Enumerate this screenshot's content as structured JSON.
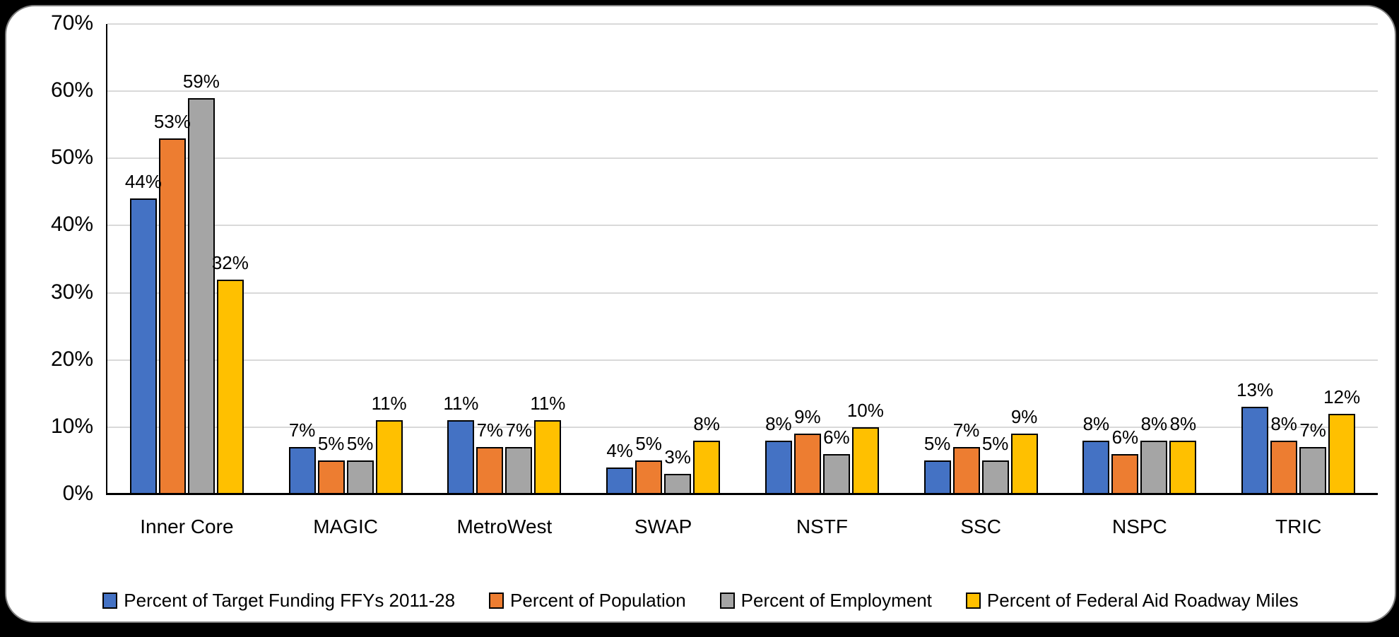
{
  "chart_data": {
    "type": "bar",
    "title": "",
    "categories": [
      "Inner Core",
      "MAGIC",
      "MetroWest",
      "SWAP",
      "NSTF",
      "SSC",
      "NSPC",
      "TRIC"
    ],
    "series": [
      {
        "name": "Percent of Target Funding FFYs 2011-28",
        "color": "#4472C4",
        "values": [
          44,
          7,
          11,
          4,
          8,
          5,
          8,
          13
        ]
      },
      {
        "name": "Percent of Population",
        "color": "#ED7D31",
        "values": [
          53,
          5,
          7,
          5,
          9,
          7,
          6,
          8
        ]
      },
      {
        "name": "Percent of Employment",
        "color": "#A5A5A5",
        "values": [
          59,
          5,
          7,
          3,
          6,
          5,
          8,
          7
        ]
      },
      {
        "name": "Percent of Federal Aid Roadway Miles",
        "color": "#FFC000",
        "values": [
          32,
          11,
          11,
          8,
          10,
          9,
          8,
          12
        ]
      }
    ],
    "data_labels": [
      [
        "44%",
        "7%",
        "11%",
        "4%",
        "8%",
        "5%",
        "8%",
        "13%"
      ],
      [
        "53%",
        "5%",
        "7%",
        "5%",
        "9%",
        "7%",
        "6%",
        "8%"
      ],
      [
        "59%",
        "5%",
        "7%",
        "3%",
        "6%",
        "5%",
        "8%",
        "7%"
      ],
      [
        "32%",
        "11%",
        "11%",
        "8%",
        "10%",
        "9%",
        "8%",
        "12%"
      ]
    ],
    "data_label_suffix": "%",
    "y_axis": {
      "min": 0,
      "max": 70,
      "step": 10,
      "tick_labels": [
        "0%",
        "10%",
        "20%",
        "30%",
        "40%",
        "50%",
        "60%",
        "70%"
      ]
    },
    "grid": true,
    "legend_position": "bottom",
    "bar_outline_color": "#000000"
  },
  "colors": {
    "background": "#000000",
    "panel": "#FFFFFF",
    "panel_border": "#7F7F7F",
    "gridline": "#D9D9D9",
    "axis_line": "#000000",
    "text": "#000000"
  }
}
